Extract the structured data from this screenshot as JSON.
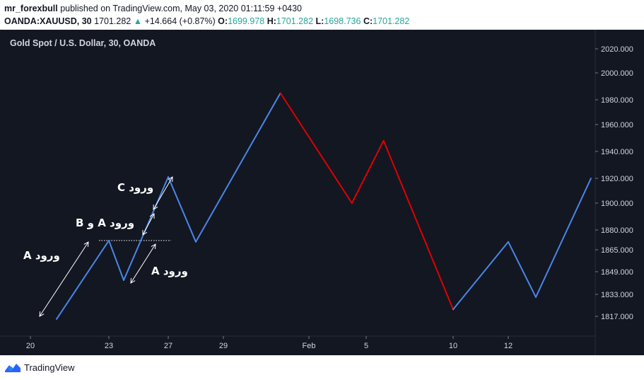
{
  "header": {
    "username": "mr_forexbull",
    "published_text": "published on TradingView.com, May 03, 2020 01:11:59 +0430",
    "symbol": "OANDA:XAUUSD, 30",
    "price": "1701.282",
    "change": "+14.664 (+0.87%)",
    "change_arrow": "▲",
    "open_label": "O:",
    "open": "1699.978",
    "high_label": "H:",
    "high": "1701.282",
    "low_label": "L:",
    "low": "1698.736",
    "close_label": "C:",
    "close": "1701.282"
  },
  "footer": {
    "brand": "TradingView"
  },
  "chart_data": {
    "type": "line",
    "title": "Gold Spot / U.S. Dollar, 30, OANDA",
    "x_ticks": [
      "20",
      "23",
      "27",
      "29",
      "Feb",
      "5",
      "10",
      "12"
    ],
    "y_ticks": [
      "2020.000",
      "2000.000",
      "1980.000",
      "1960.000",
      "1940.000",
      "1920.000",
      "1900.000",
      "1880.000",
      "1865.000",
      "1849.000",
      "1833.000",
      "1817.000"
    ],
    "colors": {
      "background": "#131722",
      "up": "#4a86e8",
      "down": "#e00000",
      "axis_text": "#d1d4dc",
      "annotation": "#ffffff"
    },
    "series": [
      {
        "points": [
          {
            "x": "Jan 21",
            "y": 1815
          },
          {
            "x": "Jan 23",
            "y": 1872
          },
          {
            "x": "Jan 24",
            "y": 1843
          },
          {
            "x": "Jan 27",
            "y": 1921
          },
          {
            "x": "Jan 28",
            "y": 1871
          },
          {
            "x": "Jan 31",
            "y": 1985
          },
          {
            "x": "Feb 4",
            "y": 1900
          },
          {
            "x": "Feb 6",
            "y": 1948
          },
          {
            "x": "Feb 10",
            "y": 1822
          },
          {
            "x": "Feb 12",
            "y": 1871
          },
          {
            "x": "Feb 13",
            "y": 1831
          },
          {
            "x": "Feb 15",
            "y": 1920
          }
        ],
        "segment_colors": [
          "up",
          "up",
          "up",
          "up",
          "up",
          "down",
          "down",
          "down",
          "up",
          "up",
          "up"
        ]
      }
    ],
    "annotations": [
      {
        "text": "A ورود"
      },
      {
        "text": "B و A ورود"
      },
      {
        "text": "C ورود"
      },
      {
        "text": "A ورود"
      }
    ],
    "reference_line": {
      "y": 1872,
      "style": "dotted"
    }
  }
}
